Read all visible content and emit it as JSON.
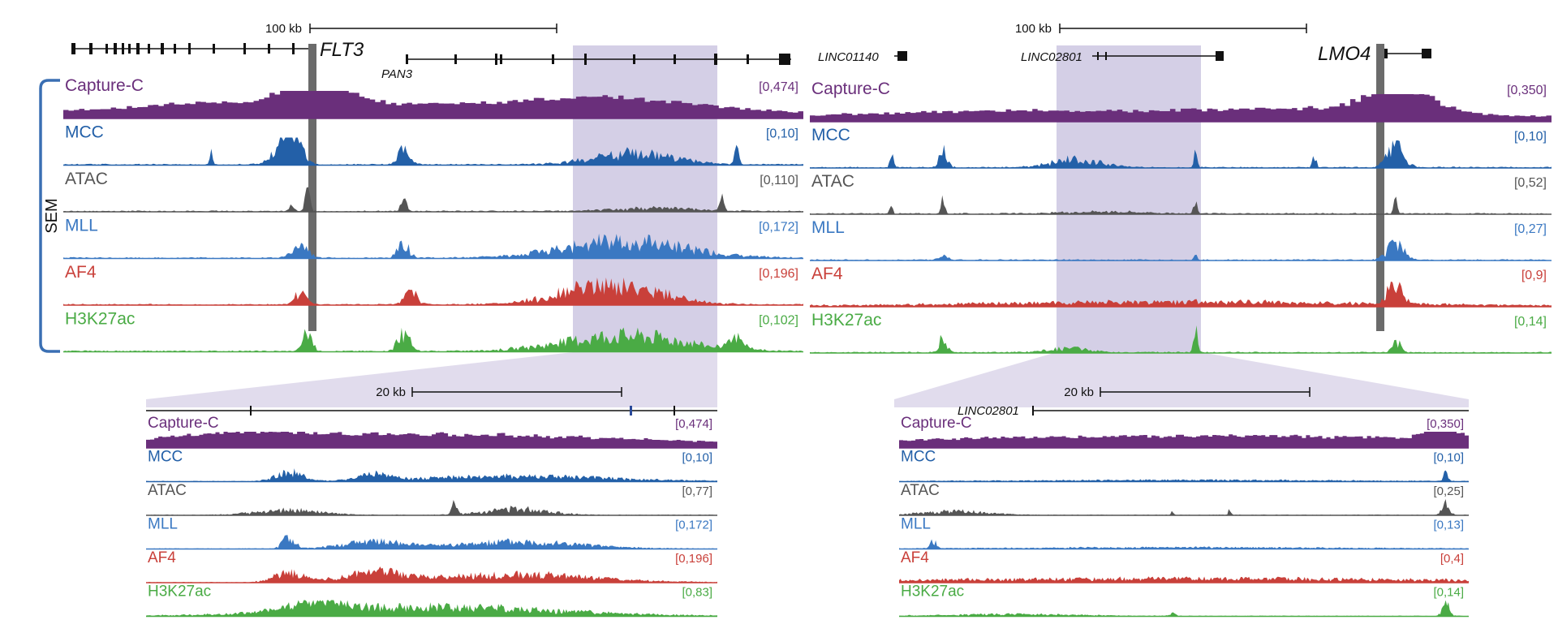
{
  "sample_label": "SEM",
  "colors": {
    "Capture-C": "#6a2f7b",
    "MCC": "#2360a8",
    "ATAC": "#555555",
    "MLL": "#3a78c2",
    "AF4": "#c9403a",
    "H3K27ac": "#4aab45",
    "highlight": "#b9b0d6",
    "anchor": "#6b6b6b",
    "sem_bracket": "#3a6fb3"
  },
  "panels": {
    "top_left": {
      "scale_label": "100 kb",
      "genes": [
        "FLT3",
        "PAN3"
      ],
      "tracks": [
        {
          "name": "Capture-C",
          "range": "[0,474]"
        },
        {
          "name": "MCC",
          "range": "[0,10]"
        },
        {
          "name": "ATAC",
          "range": "[0,110]"
        },
        {
          "name": "MLL",
          "range": "[0,172]"
        },
        {
          "name": "AF4",
          "range": "[0,196]"
        },
        {
          "name": "H3K27ac",
          "range": "[0,102]"
        }
      ]
    },
    "top_right": {
      "scale_label": "100 kb",
      "genes": [
        "LINC01140",
        "LINC02801",
        "LMO4"
      ],
      "tracks": [
        {
          "name": "Capture-C",
          "range": "[0,350]"
        },
        {
          "name": "MCC",
          "range": "[0,10]"
        },
        {
          "name": "ATAC",
          "range": "[0,52]"
        },
        {
          "name": "MLL",
          "range": "[0,27]"
        },
        {
          "name": "AF4",
          "range": "[0,9]"
        },
        {
          "name": "H3K27ac",
          "range": "[0,14]"
        }
      ]
    },
    "bottom_left": {
      "scale_label": "20 kb",
      "genes": [],
      "tracks": [
        {
          "name": "Capture-C",
          "range": "[0,474]"
        },
        {
          "name": "MCC",
          "range": "[0,10]"
        },
        {
          "name": "ATAC",
          "range": "[0,77]"
        },
        {
          "name": "MLL",
          "range": "[0,172]"
        },
        {
          "name": "AF4",
          "range": "[0,196]"
        },
        {
          "name": "H3K27ac",
          "range": "[0,83]"
        }
      ]
    },
    "bottom_right": {
      "scale_label": "20 kb",
      "genes": [
        "LINC02801"
      ],
      "tracks": [
        {
          "name": "Capture-C",
          "range": "[0,350]"
        },
        {
          "name": "MCC",
          "range": "[0,10]"
        },
        {
          "name": "ATAC",
          "range": "[0,25]"
        },
        {
          "name": "MLL",
          "range": "[0,13]"
        },
        {
          "name": "AF4",
          "range": "[0,4]"
        },
        {
          "name": "H3K27ac",
          "range": "[0,14]"
        }
      ]
    }
  }
}
